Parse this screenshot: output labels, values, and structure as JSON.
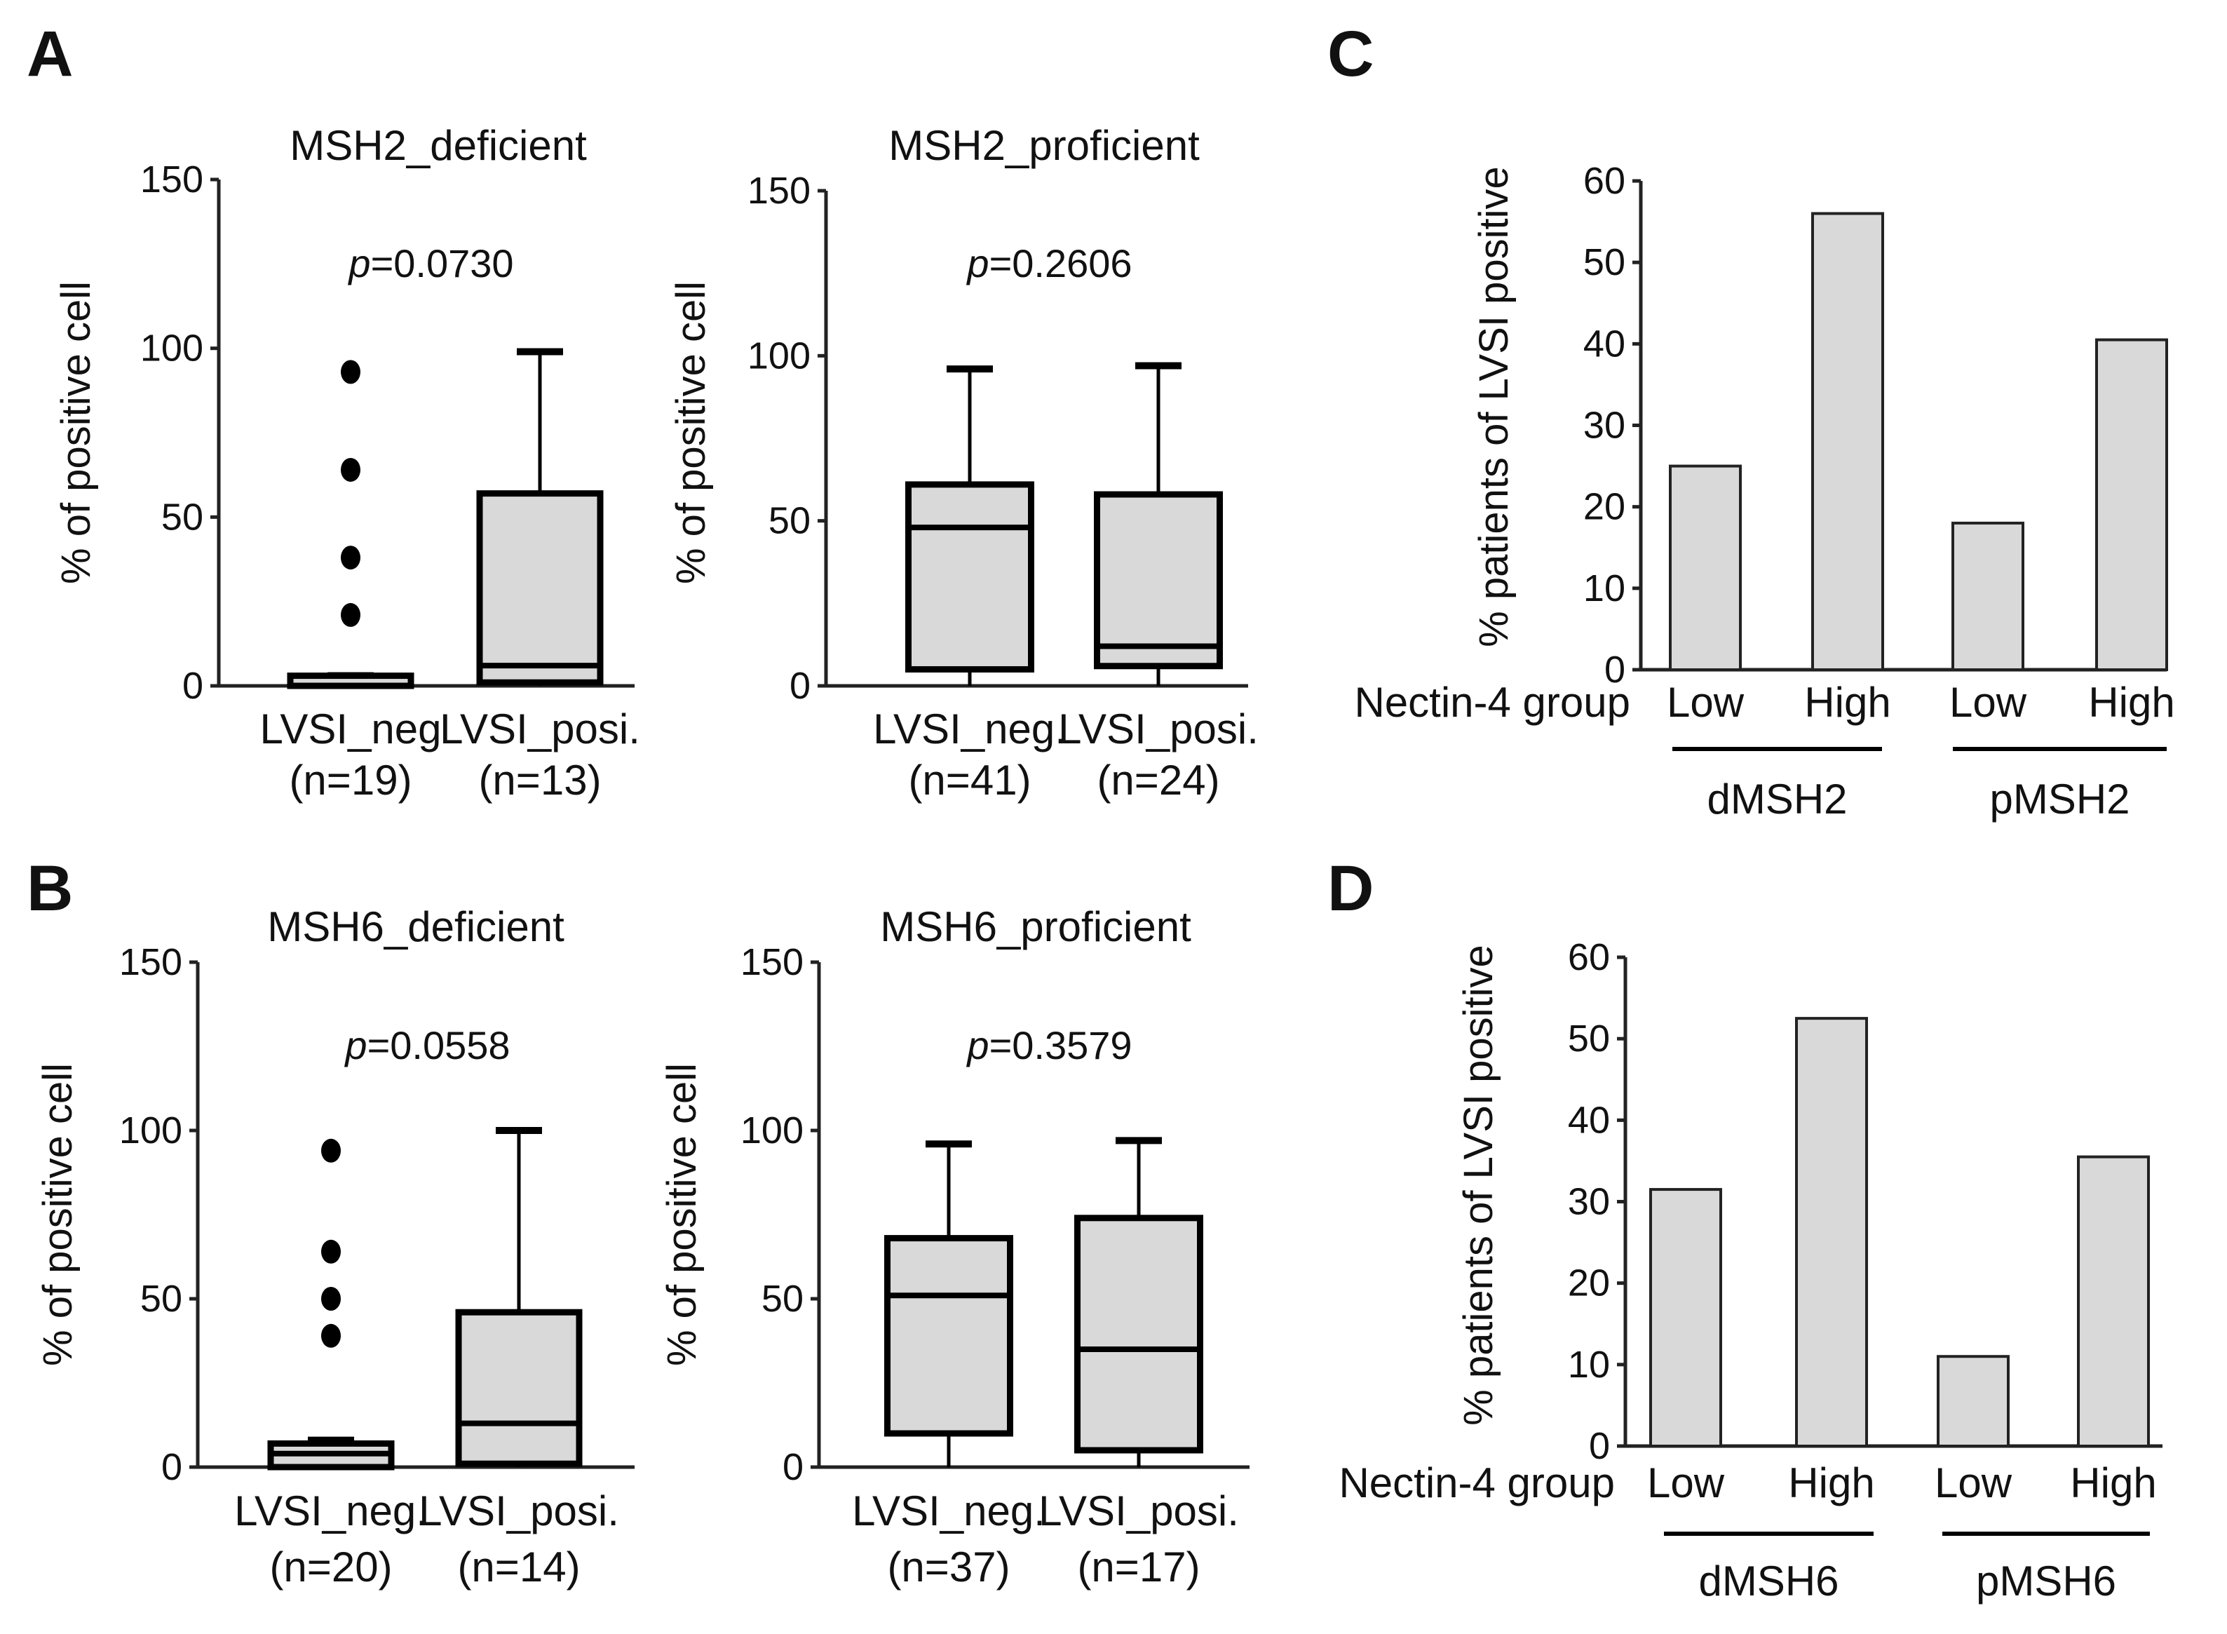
{
  "panels": [
    {
      "id": "A",
      "letter": "A"
    },
    {
      "id": "B",
      "letter": "B"
    },
    {
      "id": "C",
      "letter": "C"
    },
    {
      "id": "D",
      "letter": "D"
    }
  ],
  "chart_data": [
    {
      "id": "A1",
      "panel": "A",
      "type": "box",
      "title": "MSH2_deficient",
      "ylabel": "% of positive cell",
      "ylim": [
        0,
        150
      ],
      "yticks": [
        "0",
        "50",
        "100",
        "150"
      ],
      "p_prefix": "p",
      "p_value": "=0.0730",
      "groups": [
        {
          "label": "LVSI_neg",
          "n": "(n=19)",
          "min": 0,
          "q1": 0,
          "median": 0,
          "q3": 3,
          "max": 3,
          "outliers": [
            93,
            64,
            38,
            21
          ]
        },
        {
          "label": "LVSI_posi.",
          "n": "(n=13)",
          "min": 0,
          "q1": 1,
          "median": 6,
          "q3": 57,
          "max": 99,
          "outliers": []
        }
      ]
    },
    {
      "id": "A2",
      "panel": "A",
      "type": "box",
      "title": "MSH2_proficient",
      "ylabel": "% of positive cell",
      "ylim": [
        0,
        150
      ],
      "yticks": [
        "0",
        "50",
        "100",
        "150"
      ],
      "p_prefix": "p",
      "p_value": "=0.2606",
      "groups": [
        {
          "label": "LVSI_neg.",
          "n": "(n=41)",
          "min": 0,
          "q1": 5,
          "median": 48,
          "q3": 61,
          "max": 96,
          "outliers": []
        },
        {
          "label": "LVSI_posi.",
          "n": "(n=24)",
          "min": 0,
          "q1": 6,
          "median": 12,
          "q3": 58,
          "max": 97,
          "outliers": []
        }
      ]
    },
    {
      "id": "B1",
      "panel": "B",
      "type": "box",
      "title": "MSH6_deficient",
      "ylabel": "% of positive cell",
      "ylim": [
        0,
        150
      ],
      "yticks": [
        "0",
        "50",
        "100",
        "150"
      ],
      "p_prefix": "p",
      "p_value": "=0.0558",
      "groups": [
        {
          "label": "LVSI_neg.",
          "n": "(n=20)",
          "min": 0,
          "q1": 0,
          "median": 4,
          "q3": 7,
          "max": 8,
          "outliers": [
            94,
            64,
            50,
            39
          ]
        },
        {
          "label": "LVSI_posi.",
          "n": "(n=14)",
          "min": 0,
          "q1": 1,
          "median": 13,
          "q3": 46,
          "max": 100,
          "outliers": []
        }
      ]
    },
    {
      "id": "B2",
      "panel": "B",
      "type": "box",
      "title": "MSH6_proficient",
      "ylabel": "% of positive cell",
      "ylim": [
        0,
        150
      ],
      "yticks": [
        "0",
        "50",
        "100",
        "150"
      ],
      "p_prefix": "p",
      "p_value": "=0.3579",
      "groups": [
        {
          "label": "LVSI_neg.",
          "n": "(n=37)",
          "min": 0,
          "q1": 10,
          "median": 51,
          "q3": 68,
          "max": 96,
          "outliers": []
        },
        {
          "label": "LVSI_posi.",
          "n": "(n=17)",
          "min": 0,
          "q1": 5,
          "median": 35,
          "q3": 74,
          "max": 97,
          "outliers": []
        }
      ]
    },
    {
      "id": "C",
      "panel": "C",
      "type": "bar",
      "ylabel": "% patients of LVSI positive",
      "ylim": [
        0,
        60
      ],
      "yticks": [
        "0",
        "10",
        "20",
        "30",
        "40",
        "50",
        "60"
      ],
      "xaxis_label": "Nectin-4 group",
      "categories": [
        "Low",
        "High",
        "Low",
        "High"
      ],
      "groups": [
        "dMSH2",
        "pMSH2"
      ],
      "values": [
        25,
        56,
        18,
        40.5
      ]
    },
    {
      "id": "D",
      "panel": "D",
      "type": "bar",
      "ylabel": "% patients of LVSI positive",
      "ylim": [
        0,
        60
      ],
      "yticks": [
        "0",
        "10",
        "20",
        "30",
        "40",
        "50",
        "60"
      ],
      "xaxis_label": "Nectin-4 group",
      "categories": [
        "Low",
        "High",
        "Low",
        "High"
      ],
      "groups": [
        "dMSH6",
        "pMSH6"
      ],
      "values": [
        31.5,
        52.5,
        11,
        35.5
      ]
    }
  ]
}
